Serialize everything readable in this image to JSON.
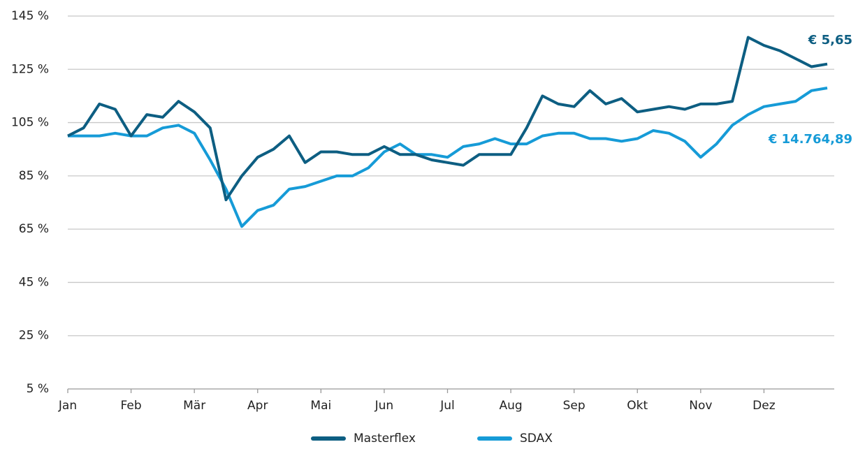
{
  "chart_data": {
    "type": "line",
    "categories": [
      "Jan",
      null,
      null,
      null,
      "Feb",
      null,
      null,
      null,
      "Mär",
      null,
      null,
      null,
      "Apr",
      null,
      null,
      null,
      "Mai",
      null,
      null,
      null,
      "Jun",
      null,
      null,
      null,
      "Jul",
      null,
      null,
      null,
      "Aug",
      null,
      null,
      null,
      "Sep",
      null,
      null,
      null,
      "Okt",
      null,
      null,
      null,
      "Nov",
      null,
      null,
      null,
      "Dez",
      null,
      null,
      null,
      null
    ],
    "series": [
      {
        "name": "Masterflex",
        "color": "#0d5e82",
        "values": [
          100,
          103,
          112,
          110,
          100,
          108,
          107,
          113,
          109,
          103,
          76,
          85,
          92,
          95,
          100,
          90,
          94,
          94,
          93,
          93,
          96,
          93,
          93,
          91,
          90,
          89,
          93,
          93,
          93,
          103,
          115,
          112,
          111,
          117,
          112,
          114,
          109,
          110,
          111,
          110,
          112,
          112,
          113,
          137,
          134,
          132,
          129,
          126,
          127
        ]
      },
      {
        "name": "SDAX",
        "color": "#169bd7",
        "values": [
          100,
          100,
          100,
          101,
          100,
          100,
          103,
          104,
          101,
          91,
          80,
          66,
          72,
          74,
          80,
          81,
          83,
          85,
          85,
          88,
          94,
          97,
          93,
          93,
          92,
          96,
          97,
          99,
          97,
          97,
          100,
          101,
          101,
          99,
          99,
          98,
          99,
          102,
          101,
          98,
          92,
          97,
          104,
          108,
          111,
          112,
          113,
          117,
          118
        ]
      }
    ],
    "annotations": [
      "€ 5,65",
      "€ 14.764,89"
    ],
    "ylim": [
      5,
      145
    ],
    "yticks": [
      {
        "value": 5,
        "label": "5 %"
      },
      {
        "value": 25,
        "label": "25 %"
      },
      {
        "value": 45,
        "label": "45 %"
      },
      {
        "value": 65,
        "label": "65 %"
      },
      {
        "value": 85,
        "label": "85 %"
      },
      {
        "value": 105,
        "label": "105 %"
      },
      {
        "value": 125,
        "label": "125 %"
      },
      {
        "value": 145,
        "label": "145 %"
      }
    ],
    "grid": true
  }
}
